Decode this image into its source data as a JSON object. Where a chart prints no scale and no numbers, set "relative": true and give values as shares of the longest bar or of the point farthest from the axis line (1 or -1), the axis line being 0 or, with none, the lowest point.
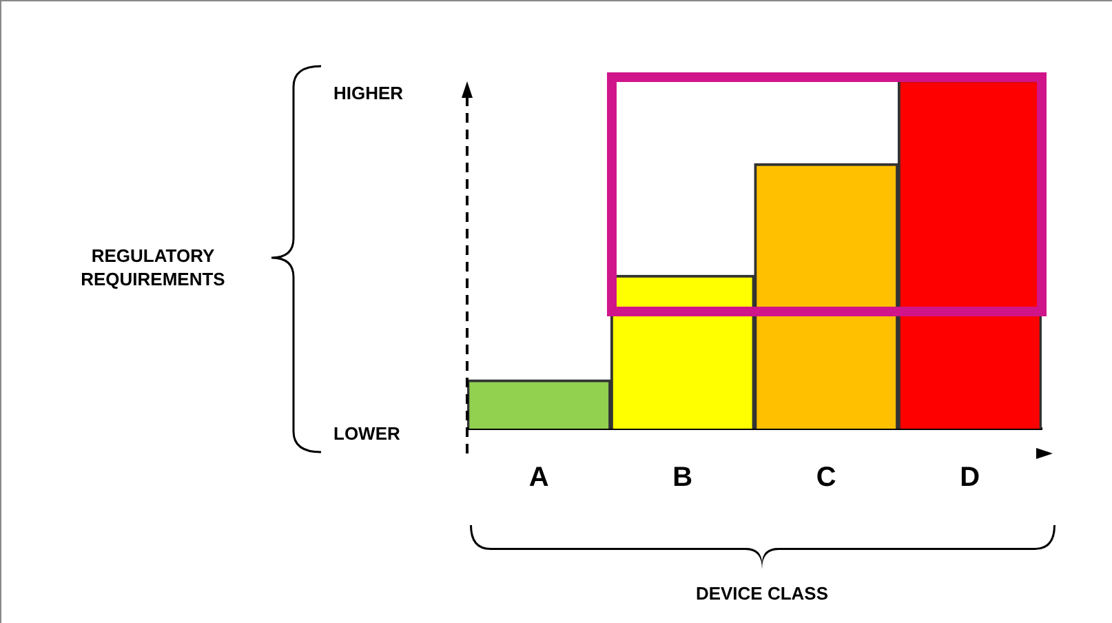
{
  "chart_data": {
    "type": "bar",
    "relative": true,
    "categories": [
      "A",
      "B",
      "C",
      "D"
    ],
    "values": [
      0.14,
      0.44,
      0.76,
      1
    ],
    "colors": [
      "#92d050",
      "#ffff00",
      "#ffc000",
      "#ff0000"
    ],
    "annotations": [
      "HIGHER",
      "LOWER",
      "REGULATORY\nREQUIREMENTS",
      "DEVICE CLASS"
    ],
    "grid": false,
    "legend": false
  }
}
